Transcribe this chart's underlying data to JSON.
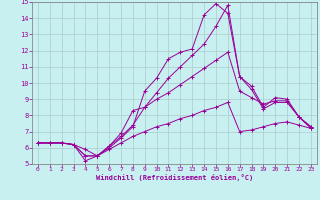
{
  "xlabel": "Windchill (Refroidissement éolien,°C)",
  "xlim": [
    -0.5,
    23.5
  ],
  "ylim": [
    5,
    15
  ],
  "yticks": [
    5,
    6,
    7,
    8,
    9,
    10,
    11,
    12,
    13,
    14,
    15
  ],
  "xticks": [
    0,
    1,
    2,
    3,
    4,
    5,
    6,
    7,
    8,
    9,
    10,
    11,
    12,
    13,
    14,
    15,
    16,
    17,
    18,
    19,
    20,
    21,
    22,
    23
  ],
  "bg_color": "#c8f0f0",
  "line_color": "#990099",
  "grid_color": "#aacccc",
  "line1_x": [
    0,
    1,
    2,
    3,
    4,
    5,
    6,
    7,
    8,
    9,
    10,
    11,
    12,
    13,
    14,
    15,
    16,
    17,
    18,
    19,
    20,
    21,
    22,
    23
  ],
  "line1_y": [
    6.3,
    6.3,
    6.3,
    6.2,
    5.9,
    5.5,
    6.0,
    6.6,
    7.3,
    9.5,
    10.3,
    11.5,
    11.9,
    12.1,
    14.2,
    14.9,
    14.3,
    10.4,
    9.8,
    8.5,
    9.1,
    9.0,
    7.9,
    7.3
  ],
  "line2_x": [
    0,
    1,
    2,
    3,
    4,
    5,
    6,
    7,
    8,
    9,
    10,
    11,
    12,
    13,
    14,
    15,
    16,
    17,
    18,
    19,
    20,
    21,
    22,
    23
  ],
  "line2_y": [
    6.3,
    6.3,
    6.3,
    6.2,
    5.2,
    5.5,
    6.1,
    6.7,
    7.4,
    8.5,
    9.4,
    10.3,
    11.0,
    11.7,
    12.4,
    13.5,
    14.8,
    10.4,
    9.6,
    8.4,
    8.8,
    8.8,
    7.9,
    7.2
  ],
  "line3_x": [
    0,
    1,
    2,
    3,
    4,
    5,
    6,
    7,
    8,
    9,
    10,
    11,
    12,
    13,
    14,
    15,
    16,
    17,
    18,
    19,
    20,
    21,
    22,
    23
  ],
  "line3_y": [
    6.3,
    6.3,
    6.3,
    6.2,
    5.5,
    5.5,
    6.1,
    6.9,
    8.3,
    8.5,
    9.0,
    9.4,
    9.9,
    10.4,
    10.9,
    11.4,
    11.9,
    9.5,
    9.1,
    8.7,
    8.9,
    8.9,
    7.9,
    7.3
  ],
  "line4_x": [
    0,
    1,
    2,
    3,
    4,
    5,
    6,
    7,
    8,
    9,
    10,
    11,
    12,
    13,
    14,
    15,
    16,
    17,
    18,
    19,
    20,
    21,
    22,
    23
  ],
  "line4_y": [
    6.3,
    6.3,
    6.3,
    6.2,
    5.5,
    5.5,
    5.9,
    6.3,
    6.7,
    7.0,
    7.3,
    7.5,
    7.8,
    8.0,
    8.3,
    8.5,
    8.8,
    7.0,
    7.1,
    7.3,
    7.5,
    7.6,
    7.4,
    7.2
  ]
}
